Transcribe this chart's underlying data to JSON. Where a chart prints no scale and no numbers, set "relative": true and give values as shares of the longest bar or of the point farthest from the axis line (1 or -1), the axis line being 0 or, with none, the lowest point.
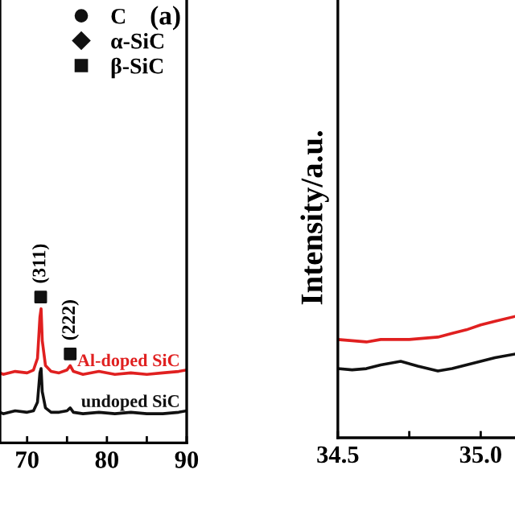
{
  "chart_data": [
    {
      "type": "line",
      "relative": true,
      "xlim": [
        66.6,
        90
      ],
      "xticks": [
        70,
        {
          "value": 75,
          "label": null
        },
        80,
        {
          "value": 85,
          "label": null
        },
        90
      ],
      "legend": "top",
      "grid": false,
      "tick_labels": "x",
      "annotations": [
        "(a)",
        "(311)",
        "(222)"
      ],
      "series": [
        {
          "name": "Al-doped SiC",
          "color": "#e02020",
          "x": [
            66.6,
            67,
            68.5,
            70,
            70.8,
            71.3,
            71.6,
            71.75,
            71.9,
            72.3,
            73,
            74,
            75,
            75.4,
            75.8,
            77,
            79,
            81,
            83,
            85,
            87,
            89,
            90
          ],
          "values": [
            0.48,
            0.47,
            0.49,
            0.48,
            0.5,
            0.58,
            0.86,
            0.92,
            0.7,
            0.53,
            0.49,
            0.48,
            0.5,
            0.53,
            0.49,
            0.47,
            0.49,
            0.47,
            0.48,
            0.47,
            0.48,
            0.49,
            0.5
          ]
        },
        {
          "name": "undoped SiC",
          "color": "#111111",
          "x": [
            66.6,
            67,
            68.5,
            70,
            70.8,
            71.3,
            71.6,
            71.75,
            71.9,
            72.3,
            73,
            74,
            75,
            75.4,
            75.8,
            77,
            79,
            81,
            83,
            85,
            87,
            89,
            90
          ],
          "values": [
            0.21,
            0.2,
            0.22,
            0.21,
            0.22,
            0.28,
            0.48,
            0.51,
            0.35,
            0.24,
            0.21,
            0.21,
            0.22,
            0.24,
            0.21,
            0.2,
            0.21,
            0.2,
            0.21,
            0.2,
            0.2,
            0.21,
            0.22
          ]
        },
        {
          "name": "C",
          "type": "scatter",
          "marker": "circle",
          "color": "#111111"
        },
        {
          "name": "α-SiC",
          "type": "scatter",
          "marker": "diamond",
          "color": "#111111"
        },
        {
          "name": "β-SiC",
          "type": "scatter",
          "marker": "square",
          "color": "#111111",
          "x": [
            71.7,
            75.4
          ],
          "values": [
            1.0,
            0.61
          ]
        }
      ]
    },
    {
      "type": "line",
      "relative": true,
      "xlim": [
        34.5,
        35.12
      ],
      "xticks": [
        34.5,
        {
          "value": 34.75,
          "label": null
        },
        {
          "value": 35.0,
          "label": "35.0"
        }
      ],
      "ylabel": "Intensity/a.u.",
      "grid": false,
      "tick_labels": "x",
      "series": [
        {
          "color": "#e02020",
          "x": [
            34.5,
            34.55,
            34.6,
            34.65,
            34.7,
            34.75,
            34.8,
            34.85,
            34.9,
            34.95,
            35.0,
            35.05,
            35.12
          ],
          "values": [
            0.81,
            0.8,
            0.79,
            0.81,
            0.81,
            0.81,
            0.82,
            0.83,
            0.86,
            0.89,
            0.93,
            0.96,
            1.0
          ]
        },
        {
          "color": "#111111",
          "x": [
            34.5,
            34.55,
            34.6,
            34.65,
            34.72,
            34.78,
            34.85,
            34.9,
            34.95,
            35.0,
            35.05,
            35.12
          ],
          "values": [
            0.57,
            0.56,
            0.57,
            0.6,
            0.63,
            0.59,
            0.55,
            0.57,
            0.6,
            0.63,
            0.66,
            0.69
          ]
        }
      ]
    }
  ]
}
